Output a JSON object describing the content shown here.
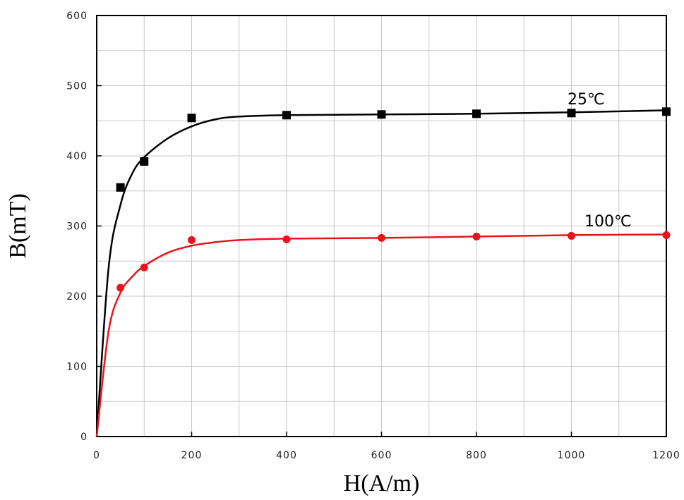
{
  "chart_data": {
    "type": "scatter",
    "xlabel": "H(A/m)",
    "ylabel": "B(mT)",
    "xlim": [
      0,
      1200
    ],
    "ylim": [
      0,
      600
    ],
    "x_ticks": [
      0,
      200,
      400,
      600,
      800,
      1000,
      1200
    ],
    "y_ticks": [
      0,
      100,
      200,
      300,
      400,
      500,
      600
    ],
    "grid": true,
    "series": [
      {
        "name": "25℃",
        "color": "#000000",
        "marker": "square",
        "points": [
          [
            50,
            355
          ],
          [
            100,
            392
          ],
          [
            200,
            454
          ],
          [
            400,
            458
          ],
          [
            600,
            459
          ],
          [
            800,
            460
          ],
          [
            1000,
            461
          ],
          [
            1200,
            463
          ]
        ],
        "fit_curve": [
          [
            0,
            0
          ],
          [
            25,
            240
          ],
          [
            50,
            330
          ],
          [
            75,
            375
          ],
          [
            100,
            398
          ],
          [
            150,
            425
          ],
          [
            200,
            442
          ],
          [
            250,
            452
          ],
          [
            300,
            456
          ],
          [
            400,
            458
          ],
          [
            600,
            459
          ],
          [
            800,
            460
          ],
          [
            1000,
            462
          ],
          [
            1200,
            465
          ]
        ]
      },
      {
        "name": "100℃",
        "color": "#e8141e",
        "marker": "circle",
        "points": [
          [
            50,
            212
          ],
          [
            100,
            241
          ],
          [
            200,
            280
          ],
          [
            400,
            281
          ],
          [
            600,
            283
          ],
          [
            800,
            285
          ],
          [
            1000,
            286
          ],
          [
            1200,
            287
          ]
        ],
        "fit_curve": [
          [
            0,
            0
          ],
          [
            25,
            150
          ],
          [
            50,
            205
          ],
          [
            75,
            228
          ],
          [
            100,
            243
          ],
          [
            150,
            262
          ],
          [
            200,
            272
          ],
          [
            250,
            277
          ],
          [
            300,
            280
          ],
          [
            400,
            282
          ],
          [
            600,
            283
          ],
          [
            800,
            285
          ],
          [
            1000,
            287
          ],
          [
            1200,
            288
          ]
        ]
      }
    ]
  }
}
